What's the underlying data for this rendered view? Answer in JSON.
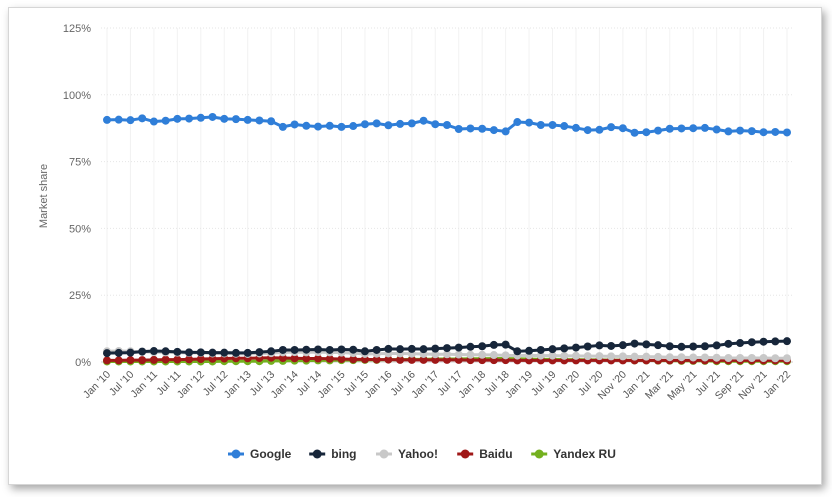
{
  "chart_data": {
    "type": "line",
    "ylabel": "Market share",
    "ylim": [
      0,
      125
    ],
    "yticks": [
      0,
      25,
      50,
      75,
      100,
      125
    ],
    "ytick_labels": [
      "0%",
      "25%",
      "50%",
      "75%",
      "100%",
      "125%"
    ],
    "xtick_labels": [
      "Jan '10",
      "Jul '10",
      "Jan '11",
      "Jul '11",
      "Jan '12",
      "Jul '12",
      "Jan '13",
      "Jul '13",
      "Jan '14",
      "Jul '14",
      "Jan '15",
      "Jul '15",
      "Jan '16",
      "Jul '16",
      "Jan '17",
      "Jul '17",
      "Jan '18",
      "Jul '18",
      "Jan '19",
      "Jul '19",
      "Jan '20",
      "Jul '20",
      "Nov '20",
      "Jan '21",
      "Mar '21",
      "May '21",
      "Jul '21",
      "Sep '21",
      "Nov '21",
      "Jan '22"
    ],
    "grid": true,
    "legend_position": "bottom-center",
    "series": [
      {
        "name": "Google",
        "color": "#2f7ed8",
        "values": [
          90.6,
          90.7,
          90.5,
          91.2,
          90.0,
          90.3,
          91.0,
          91.1,
          91.4,
          91.7,
          91.0,
          90.9,
          90.6,
          90.4,
          90.1,
          88.0,
          88.9,
          88.4,
          88.1,
          88.4,
          88.0,
          88.3,
          89.0,
          89.3,
          88.6,
          89.1,
          89.3,
          90.3,
          89.0,
          88.7,
          87.2,
          87.4,
          87.3,
          86.8,
          86.3,
          89.8,
          89.6,
          88.7,
          88.7,
          88.3,
          87.6,
          86.8,
          86.9,
          87.9,
          87.5,
          85.8,
          86.0,
          86.6,
          87.3,
          87.4,
          87.5,
          87.6,
          87.0,
          86.3,
          86.6,
          86.4,
          86.0,
          86.1,
          85.9
        ]
      },
      {
        "name": "bing",
        "color": "#17263a",
        "values": [
          3.3,
          3.4,
          3.5,
          3.9,
          4.1,
          4.0,
          3.8,
          3.6,
          3.6,
          3.5,
          3.5,
          3.4,
          3.4,
          3.7,
          4.0,
          4.5,
          4.5,
          4.6,
          4.7,
          4.5,
          4.7,
          4.6,
          4.0,
          4.5,
          4.9,
          4.8,
          4.9,
          4.8,
          5.0,
          5.2,
          5.4,
          5.7,
          5.9,
          6.4,
          6.5,
          4.0,
          4.2,
          4.5,
          4.8,
          5.1,
          5.4,
          5.8,
          6.2,
          6.0,
          6.3,
          6.9,
          6.6,
          6.3,
          5.9,
          5.7,
          5.8,
          5.9,
          6.2,
          6.8,
          7.1,
          7.4,
          7.6,
          7.7,
          7.8
        ]
      },
      {
        "name": "Yahoo!",
        "color": "#c8c8c8",
        "values": [
          4.0,
          4.1,
          4.0,
          3.8,
          3.7,
          3.6,
          3.5,
          3.4,
          3.4,
          3.2,
          3.2,
          3.1,
          3.0,
          3.2,
          3.3,
          3.6,
          3.7,
          3.6,
          3.7,
          3.6,
          3.5,
          3.3,
          3.0,
          3.1,
          3.2,
          3.2,
          3.1,
          3.0,
          2.9,
          2.9,
          2.8,
          2.7,
          2.7,
          2.6,
          2.5,
          2.4,
          2.5,
          2.4,
          2.4,
          2.3,
          2.3,
          2.2,
          2.2,
          2.1,
          2.1,
          2.0,
          2.0,
          1.9,
          1.8,
          1.8,
          1.7,
          1.7,
          1.6,
          1.5,
          1.5,
          1.5,
          1.5,
          1.4,
          1.4
        ]
      },
      {
        "name": "Baidu",
        "color": "#a01818",
        "values": [
          0.6,
          0.6,
          0.7,
          0.7,
          0.8,
          0.9,
          0.9,
          1.0,
          1.1,
          1.2,
          1.3,
          1.4,
          1.4,
          1.5,
          1.6,
          1.5,
          1.4,
          1.3,
          1.3,
          1.2,
          1.1,
          1.0,
          1.0,
          0.9,
          0.9,
          0.8,
          0.8,
          0.8,
          0.8,
          0.8,
          0.8,
          0.7,
          0.7,
          0.7,
          0.7,
          0.6,
          0.6,
          0.6,
          0.6,
          0.6,
          0.6,
          0.6,
          0.6,
          0.6,
          0.6,
          0.6,
          0.6,
          0.6,
          0.6,
          0.6,
          0.6,
          0.6,
          0.6,
          0.6,
          0.6,
          0.6,
          0.6,
          0.6,
          0.6
        ]
      },
      {
        "name": "Yandex RU",
        "color": "#74b01f",
        "values": [
          0.2,
          0.2,
          0.2,
          0.2,
          0.2,
          0.2,
          0.2,
          0.2,
          0.2,
          0.2,
          0.3,
          0.3,
          0.3,
          0.3,
          0.4,
          0.4,
          0.5,
          0.5,
          0.6,
          0.6,
          0.7,
          0.7,
          0.8,
          0.8,
          0.9,
          0.9,
          1.0,
          1.0,
          1.1,
          1.1,
          1.1,
          1.2,
          1.2,
          1.3,
          1.3,
          1.2,
          1.1,
          1.0,
          1.0,
          0.9,
          0.9,
          0.8,
          0.8,
          0.7,
          0.7,
          0.6,
          0.6,
          0.5,
          0.5,
          0.4,
          0.4,
          0.4,
          0.3,
          0.3,
          0.3,
          0.3,
          0.3,
          0.3,
          0.3
        ]
      }
    ]
  }
}
